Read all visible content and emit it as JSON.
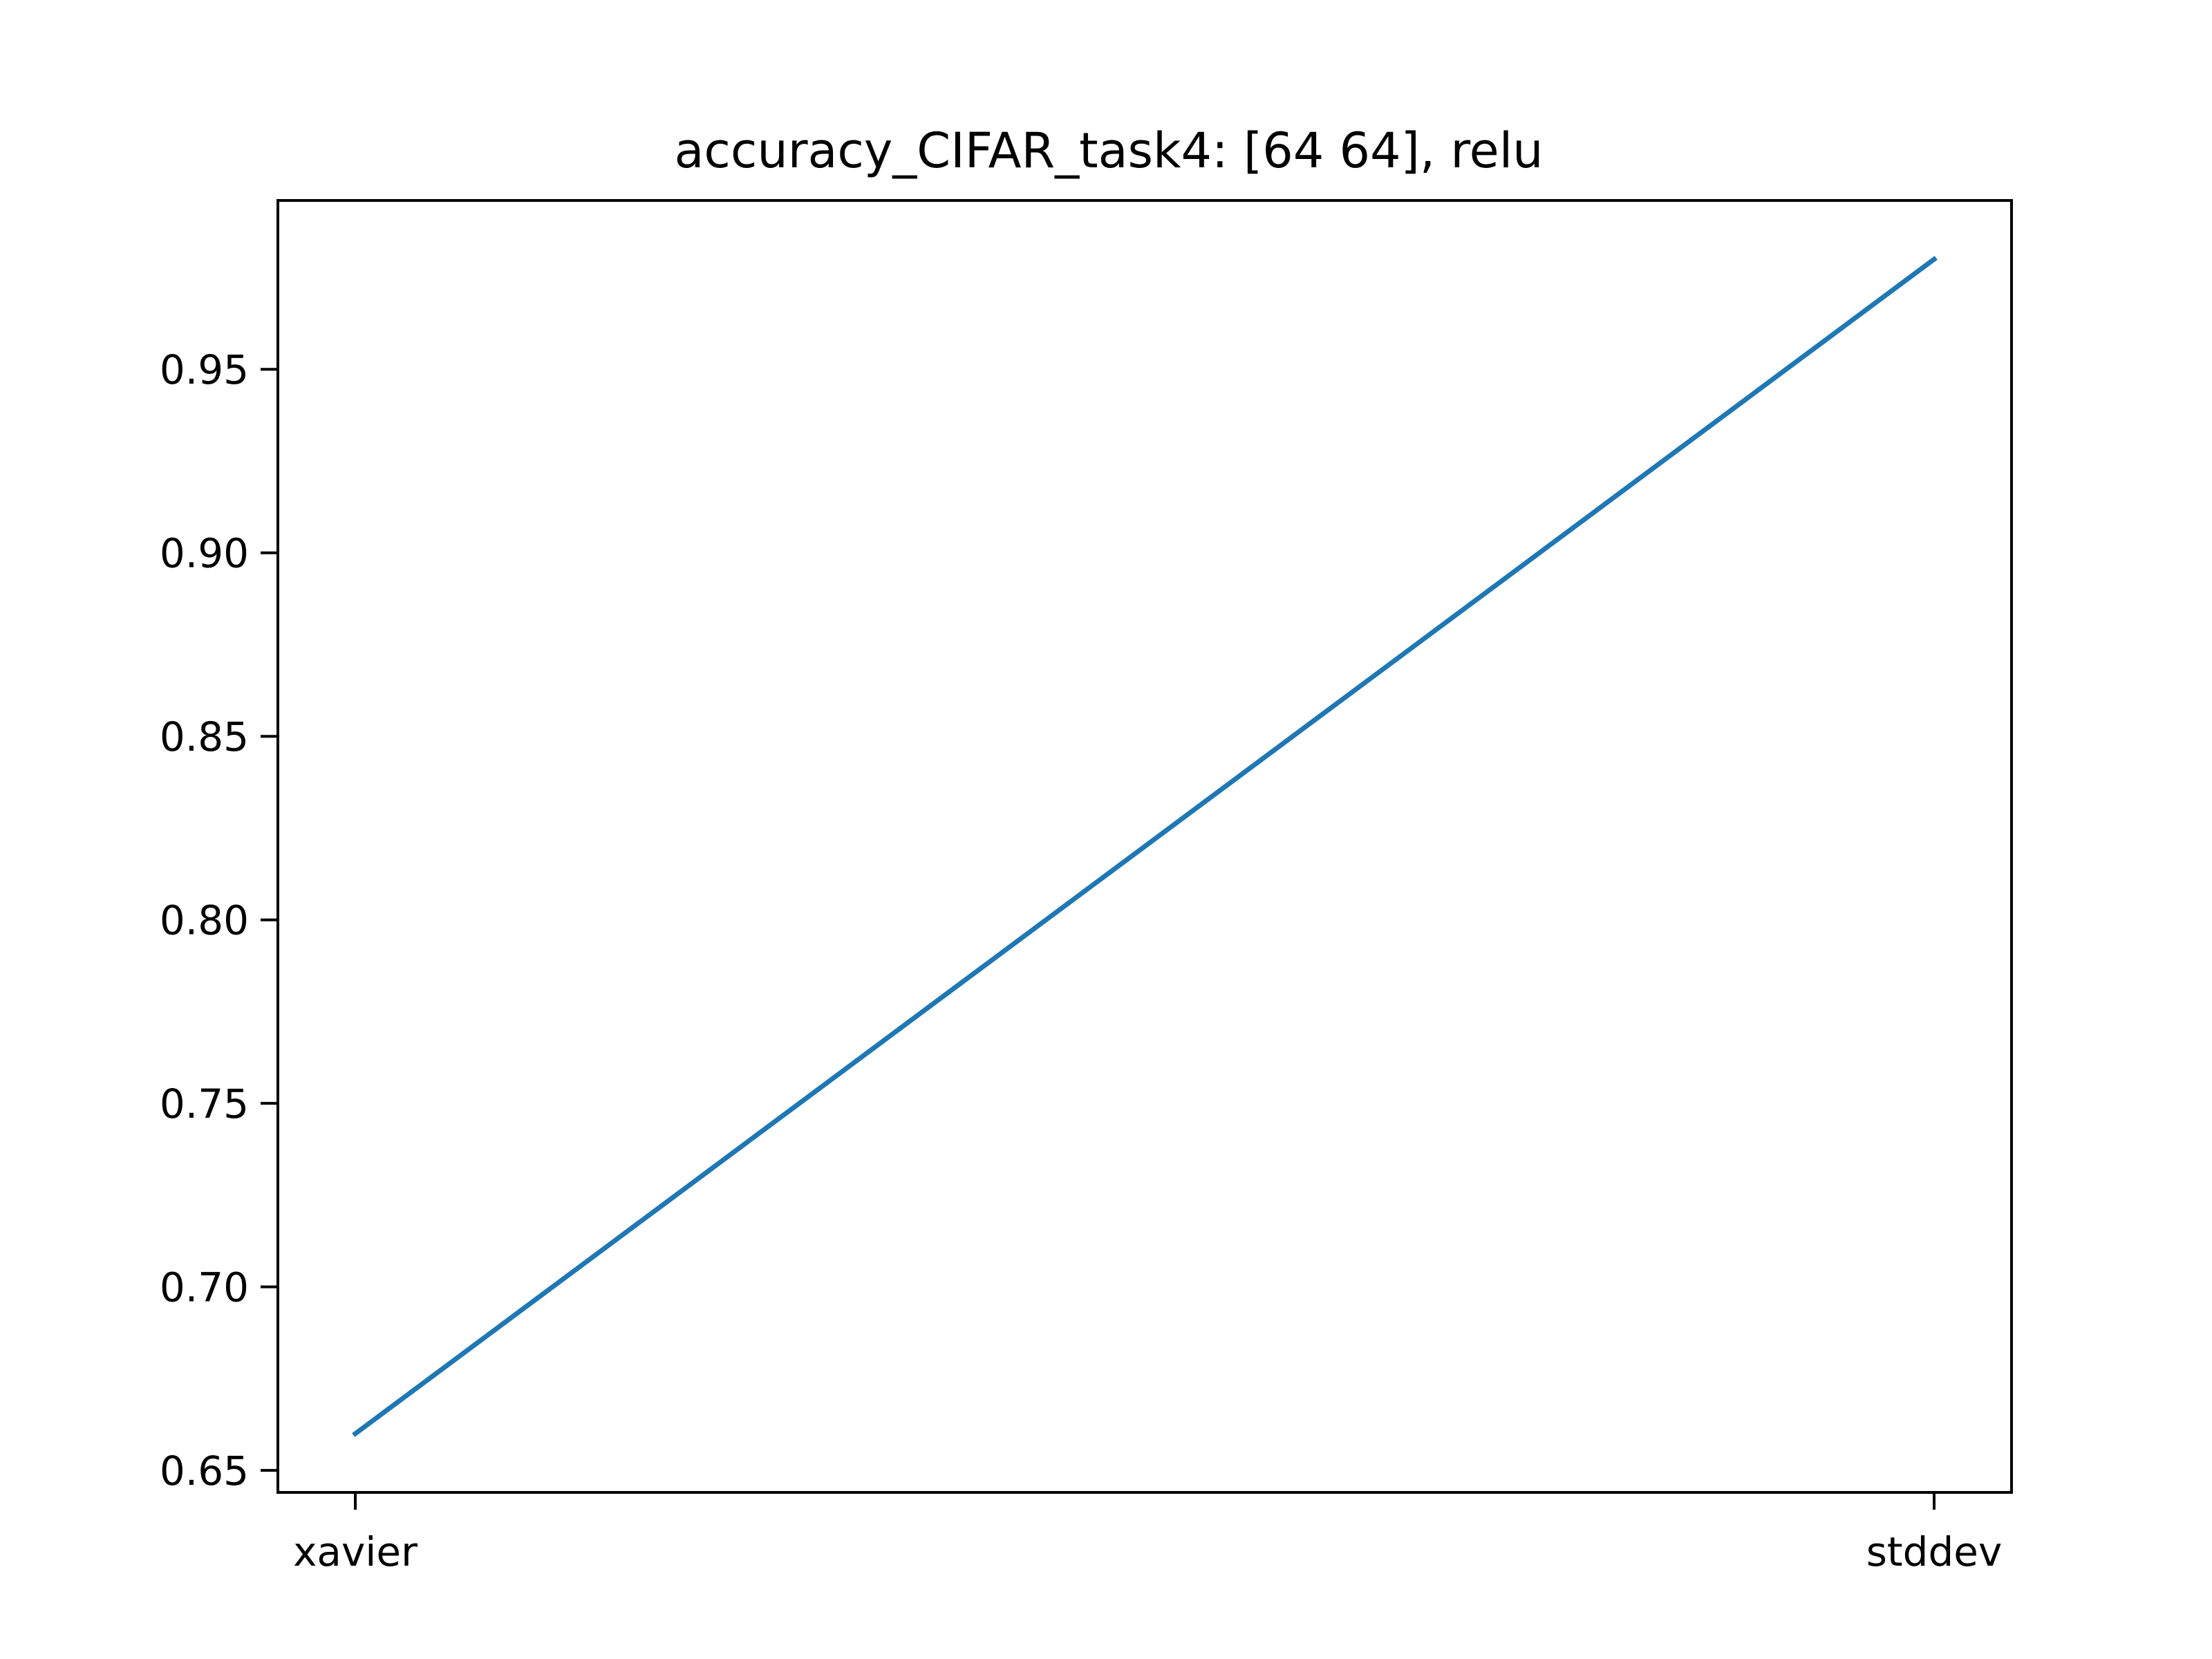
{
  "chart_data": {
    "type": "line",
    "title": "accuracy_CIFAR_task4: [64 64], relu",
    "xlabel": "",
    "ylabel": "",
    "categories": [
      "xavier",
      "stddev"
    ],
    "series": [
      {
        "values": [
          0.66,
          0.98
        ],
        "color": "#1f77b4"
      }
    ],
    "yticks": [
      0.65,
      0.7,
      0.75,
      0.8,
      0.85,
      0.9,
      0.95
    ],
    "ytick_labels": [
      "0.65",
      "0.70",
      "0.75",
      "0.80",
      "0.85",
      "0.90",
      "0.95"
    ],
    "ylim": [
      0.644,
      0.996
    ],
    "grid": false,
    "legend": "none"
  }
}
